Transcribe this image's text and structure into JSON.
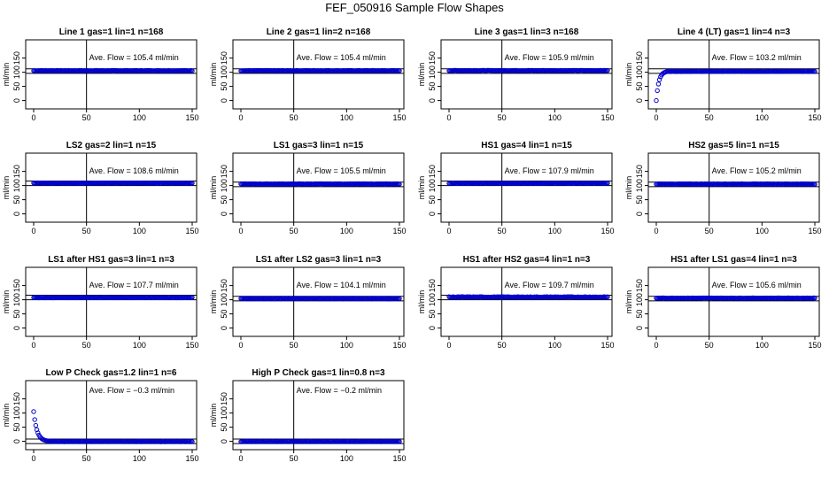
{
  "figure": {
    "title": "FEF_050916  Sample Flow Shapes",
    "ylabel": "ml/min",
    "annotation_prefix": "Ave. Flow = ",
    "annotation_unit": "ml/min",
    "point_color": "#0000cc"
  },
  "chart_data": [
    {
      "type": "scatter",
      "title": "Line 1 gas=1 lin=1 n=168",
      "ave_flow": "105.4",
      "level": 105.4,
      "shape": "flat",
      "ref_lines": [
        112,
        96
      ],
      "xlim": [
        0,
        150
      ],
      "ylim": [
        -20,
        205
      ],
      "xticks": [
        0,
        50,
        100,
        150
      ],
      "yticks": [
        0,
        50,
        100,
        150
      ],
      "vline": 50
    },
    {
      "type": "scatter",
      "title": "Line 2 gas=1 lin=2 n=168",
      "ave_flow": "105.4",
      "level": 105.4,
      "shape": "flat",
      "ref_lines": [
        112,
        96
      ],
      "xlim": [
        0,
        150
      ],
      "ylim": [
        -20,
        205
      ],
      "xticks": [
        0,
        50,
        100,
        150
      ],
      "yticks": [
        0,
        50,
        100,
        150
      ],
      "vline": 50
    },
    {
      "type": "scatter",
      "title": "Line 3 gas=1 lin=3 n=168",
      "ave_flow": "105.9",
      "level": 105.9,
      "shape": "flat",
      "ref_lines": [
        112,
        96
      ],
      "xlim": [
        0,
        150
      ],
      "ylim": [
        -20,
        205
      ],
      "xticks": [
        0,
        50,
        100,
        150
      ],
      "yticks": [
        0,
        50,
        100,
        150
      ],
      "vline": 50
    },
    {
      "type": "scatter",
      "title": "Line 4 (LT) gas=1 lin=4 n=3",
      "ave_flow": "103.2",
      "level": 103.2,
      "shape": "rise",
      "ref_lines": [
        112,
        96
      ],
      "xlim": [
        0,
        150
      ],
      "ylim": [
        -20,
        205
      ],
      "xticks": [
        0,
        50,
        100,
        150
      ],
      "yticks": [
        0,
        50,
        100,
        150
      ],
      "vline": 50
    },
    {
      "type": "scatter",
      "title": "LS2 gas=2 lin=1 n=15",
      "ave_flow": "108.6",
      "level": 108.6,
      "shape": "flat",
      "ref_lines": [
        116,
        100
      ],
      "xlim": [
        0,
        150
      ],
      "ylim": [
        -20,
        205
      ],
      "xticks": [
        0,
        50,
        100,
        150
      ],
      "yticks": [
        0,
        50,
        100,
        150
      ],
      "vline": 50
    },
    {
      "type": "scatter",
      "title": "LS1 gas=3 lin=1 n=15",
      "ave_flow": "105.5",
      "level": 105.5,
      "shape": "flat",
      "ref_lines": [
        112,
        96
      ],
      "xlim": [
        0,
        150
      ],
      "ylim": [
        -20,
        205
      ],
      "xticks": [
        0,
        50,
        100,
        150
      ],
      "yticks": [
        0,
        50,
        100,
        150
      ],
      "vline": 50
    },
    {
      "type": "scatter",
      "title": "HS1 gas=4 lin=1 n=15",
      "ave_flow": "107.9",
      "level": 107.9,
      "shape": "flat",
      "ref_lines": [
        116,
        100
      ],
      "xlim": [
        0,
        150
      ],
      "ylim": [
        -20,
        205
      ],
      "xticks": [
        0,
        50,
        100,
        150
      ],
      "yticks": [
        0,
        50,
        100,
        150
      ],
      "vline": 50
    },
    {
      "type": "scatter",
      "title": "HS2 gas=5 lin=1 n=15",
      "ave_flow": "105.2",
      "level": 105.2,
      "shape": "flat",
      "ref_lines": [
        112,
        96
      ],
      "xlim": [
        0,
        150
      ],
      "ylim": [
        -20,
        205
      ],
      "xticks": [
        0,
        50,
        100,
        150
      ],
      "yticks": [
        0,
        50,
        100,
        150
      ],
      "vline": 50
    },
    {
      "type": "scatter",
      "title": "LS1 after HS1 gas=3 lin=1 n=3",
      "ave_flow": "107.7",
      "level": 107.7,
      "shape": "flat",
      "ref_lines": [
        116,
        100
      ],
      "xlim": [
        0,
        150
      ],
      "ylim": [
        -20,
        205
      ],
      "xticks": [
        0,
        50,
        100,
        150
      ],
      "yticks": [
        0,
        50,
        100,
        150
      ],
      "vline": 50
    },
    {
      "type": "scatter",
      "title": "LS1 after LS2 gas=3 lin=1 n=3",
      "ave_flow": "104.1",
      "level": 104.1,
      "shape": "flat",
      "ref_lines": [
        112,
        96
      ],
      "xlim": [
        0,
        150
      ],
      "ylim": [
        -20,
        205
      ],
      "xticks": [
        0,
        50,
        100,
        150
      ],
      "yticks": [
        0,
        50,
        100,
        150
      ],
      "vline": 50
    },
    {
      "type": "scatter",
      "title": "HS1 after HS2 gas=4 lin=1 n=3",
      "ave_flow": "109.7",
      "level": 109.7,
      "shape": "flat",
      "ref_lines": [
        116,
        100
      ],
      "xlim": [
        0,
        150
      ],
      "ylim": [
        -20,
        205
      ],
      "xticks": [
        0,
        50,
        100,
        150
      ],
      "yticks": [
        0,
        50,
        100,
        150
      ],
      "vline": 50
    },
    {
      "type": "scatter",
      "title": "HS1 after LS1 gas=4 lin=1 n=3",
      "ave_flow": "105.6",
      "level": 105.6,
      "shape": "flat",
      "ref_lines": [
        112,
        96
      ],
      "xlim": [
        0,
        150
      ],
      "ylim": [
        -20,
        205
      ],
      "xticks": [
        0,
        50,
        100,
        150
      ],
      "yticks": [
        0,
        50,
        100,
        150
      ],
      "vline": 50
    },
    {
      "type": "scatter",
      "title": "Low P Check gas=1.2 lin=1 n=6",
      "ave_flow": "−0.3",
      "level": -0.3,
      "shape": "decay",
      "ref_lines": [
        8,
        -8
      ],
      "xlim": [
        0,
        150
      ],
      "ylim": [
        -20,
        205
      ],
      "xticks": [
        0,
        50,
        100,
        150
      ],
      "yticks": [
        0,
        50,
        100,
        150
      ],
      "vline": 50
    },
    {
      "type": "scatter",
      "title": "High P Check gas=1 lin=0.8 n=3",
      "ave_flow": "−0.2",
      "level": -0.2,
      "shape": "flat",
      "ref_lines": [
        8,
        -8
      ],
      "xlim": [
        0,
        150
      ],
      "ylim": [
        -20,
        205
      ],
      "xticks": [
        0,
        50,
        100,
        150
      ],
      "yticks": [
        0,
        50,
        100,
        150
      ],
      "vline": 50
    }
  ]
}
